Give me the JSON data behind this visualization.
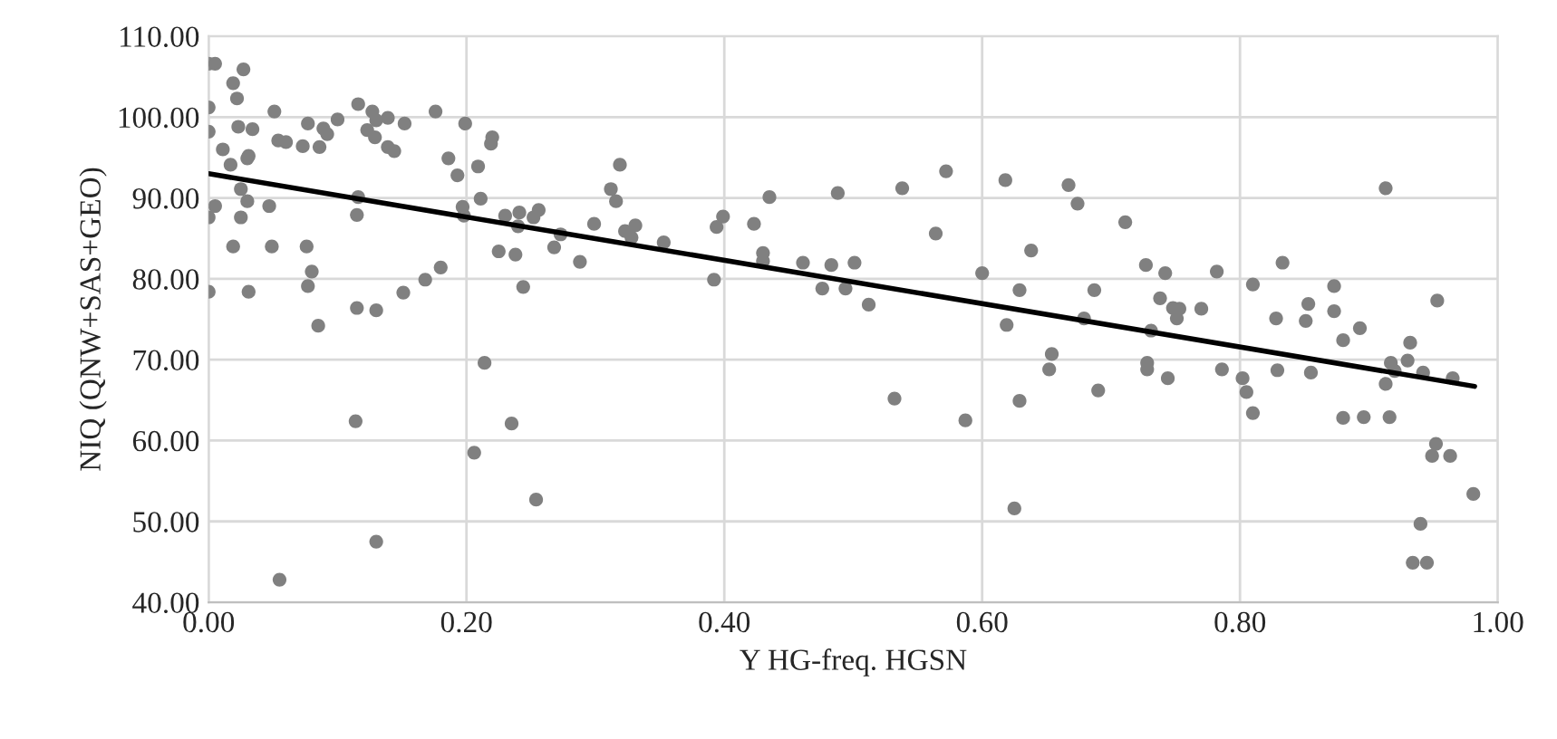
{
  "chart_data": {
    "type": "scatter",
    "xlabel": "Y HG-freq. HGSN",
    "ylabel": "NIQ (QNW+SAS+GEO)",
    "xlim": [
      0,
      1
    ],
    "ylim": [
      40,
      110
    ],
    "xticks": [
      {
        "value": 0,
        "label": "0.00"
      },
      {
        "value": 0.2,
        "label": "0.20"
      },
      {
        "value": 0.4,
        "label": "0.40"
      },
      {
        "value": 0.6,
        "label": "0.60"
      },
      {
        "value": 0.8,
        "label": "0.80"
      },
      {
        "value": 1,
        "label": "1.00"
      }
    ],
    "yticks": [
      {
        "value": 40,
        "label": "40.00"
      },
      {
        "value": 50,
        "label": "50.00"
      },
      {
        "value": 60,
        "label": "60.00"
      },
      {
        "value": 70,
        "label": "70.00"
      },
      {
        "value": 80,
        "label": "80.00"
      },
      {
        "value": 90,
        "label": "90.00"
      },
      {
        "value": 100,
        "label": "100.00"
      },
      {
        "value": 110,
        "label": "110.00"
      }
    ],
    "grid": true,
    "legend": false,
    "marker": "circle",
    "series": [
      {
        "color": "#808080",
        "x": [
          0.0,
          0.005,
          0.027,
          0.019,
          0.022,
          0.0,
          0.0,
          0.023,
          0.034,
          0.011,
          0.031,
          0.03,
          0.017,
          0.025,
          0.03,
          0.005,
          0.0,
          0.025,
          0.047,
          0.051,
          0.054,
          0.06,
          0.073,
          0.077,
          0.086,
          0.089,
          0.092,
          0.1,
          0.116,
          0.127,
          0.13,
          0.123,
          0.129,
          0.139,
          0.139,
          0.144,
          0.152,
          0.176,
          0.186,
          0.199,
          0.193,
          0.209,
          0.211,
          0.219,
          0.22,
          0.197,
          0.198,
          0.116,
          0.115,
          0.23,
          0.241,
          0.252,
          0.256,
          0.24,
          0.225,
          0.238,
          0.244,
          0.019,
          0.049,
          0.076,
          0.08,
          0.077,
          0.0,
          0.031,
          0.085,
          0.115,
          0.13,
          0.151,
          0.168,
          0.18,
          0.268,
          0.273,
          0.288,
          0.299,
          0.214,
          0.114,
          0.235,
          0.206,
          0.254,
          0.13,
          0.055,
          0.312,
          0.319,
          0.316,
          0.323,
          0.331,
          0.328,
          0.353,
          0.392,
          0.394,
          0.399,
          0.423,
          0.43,
          0.43,
          0.435,
          0.461,
          0.476,
          0.483,
          0.488,
          0.494,
          0.501,
          0.512,
          0.532,
          0.538,
          0.564,
          0.572,
          0.587,
          0.6,
          0.618,
          0.619,
          0.625,
          0.629,
          0.629,
          0.638,
          0.654,
          0.652,
          0.667,
          0.674,
          0.687,
          0.679,
          0.69,
          0.711,
          0.727,
          0.742,
          0.738,
          0.731,
          0.728,
          0.728,
          0.744,
          0.748,
          0.753,
          0.751,
          0.77,
          0.782,
          0.786,
          0.802,
          0.805,
          0.81,
          0.81,
          0.828,
          0.829,
          0.833,
          0.851,
          0.853,
          0.855,
          0.873,
          0.873,
          0.88,
          0.88,
          0.893,
          0.896,
          0.913,
          0.913,
          0.917,
          0.916,
          0.92,
          0.93,
          0.932,
          0.942,
          0.953,
          0.952,
          0.949,
          0.963,
          0.965,
          0.94,
          0.934,
          0.945,
          0.981
        ],
        "values": [
          106.6,
          106.6,
          105.9,
          104.2,
          102.3,
          101.2,
          98.2,
          98.8,
          98.5,
          96.0,
          95.2,
          94.9,
          94.1,
          91.1,
          89.6,
          89.0,
          87.6,
          87.6,
          89.0,
          100.7,
          97.1,
          96.9,
          96.4,
          99.2,
          96.3,
          98.6,
          97.9,
          99.7,
          101.6,
          100.7,
          99.6,
          98.4,
          97.5,
          99.9,
          96.3,
          95.8,
          99.2,
          100.7,
          94.9,
          99.2,
          92.8,
          93.9,
          89.9,
          96.7,
          97.5,
          88.9,
          87.8,
          90.1,
          87.9,
          87.8,
          88.2,
          87.6,
          88.5,
          86.5,
          83.4,
          83.0,
          79.0,
          84.0,
          84.0,
          84.0,
          80.9,
          79.1,
          78.4,
          78.4,
          74.2,
          76.4,
          76.1,
          78.3,
          79.9,
          81.4,
          83.9,
          85.5,
          82.1,
          86.8,
          69.6,
          62.4,
          62.1,
          58.5,
          52.7,
          47.5,
          42.8,
          91.1,
          94.1,
          89.6,
          85.9,
          86.6,
          85.1,
          84.5,
          79.9,
          86.4,
          87.7,
          86.8,
          83.2,
          82.2,
          90.1,
          82.0,
          78.8,
          81.7,
          90.6,
          78.8,
          82.0,
          76.8,
          65.2,
          91.2,
          85.6,
          93.3,
          62.5,
          80.7,
          92.2,
          74.3,
          51.6,
          78.6,
          64.9,
          83.5,
          70.7,
          68.8,
          91.6,
          89.3,
          78.6,
          75.1,
          66.2,
          87.0,
          81.7,
          80.7,
          77.6,
          73.6,
          69.6,
          68.8,
          67.7,
          76.4,
          76.3,
          75.1,
          76.3,
          80.9,
          68.8,
          67.7,
          66.0,
          79.3,
          63.4,
          75.1,
          68.7,
          82.0,
          74.8,
          76.9,
          68.4,
          79.1,
          76.0,
          72.4,
          62.8,
          73.9,
          62.9,
          91.2,
          67.0,
          69.6,
          62.9,
          68.6,
          69.9,
          72.1,
          68.4,
          77.3,
          59.6,
          58.1,
          58.1,
          67.7,
          49.7,
          44.9,
          44.9,
          53.4
        ]
      },
      {
        "type": "line",
        "color": "#000000",
        "marker": "none",
        "x": [
          0,
          0.982
        ],
        "values": [
          93.0,
          66.7
        ]
      }
    ]
  }
}
